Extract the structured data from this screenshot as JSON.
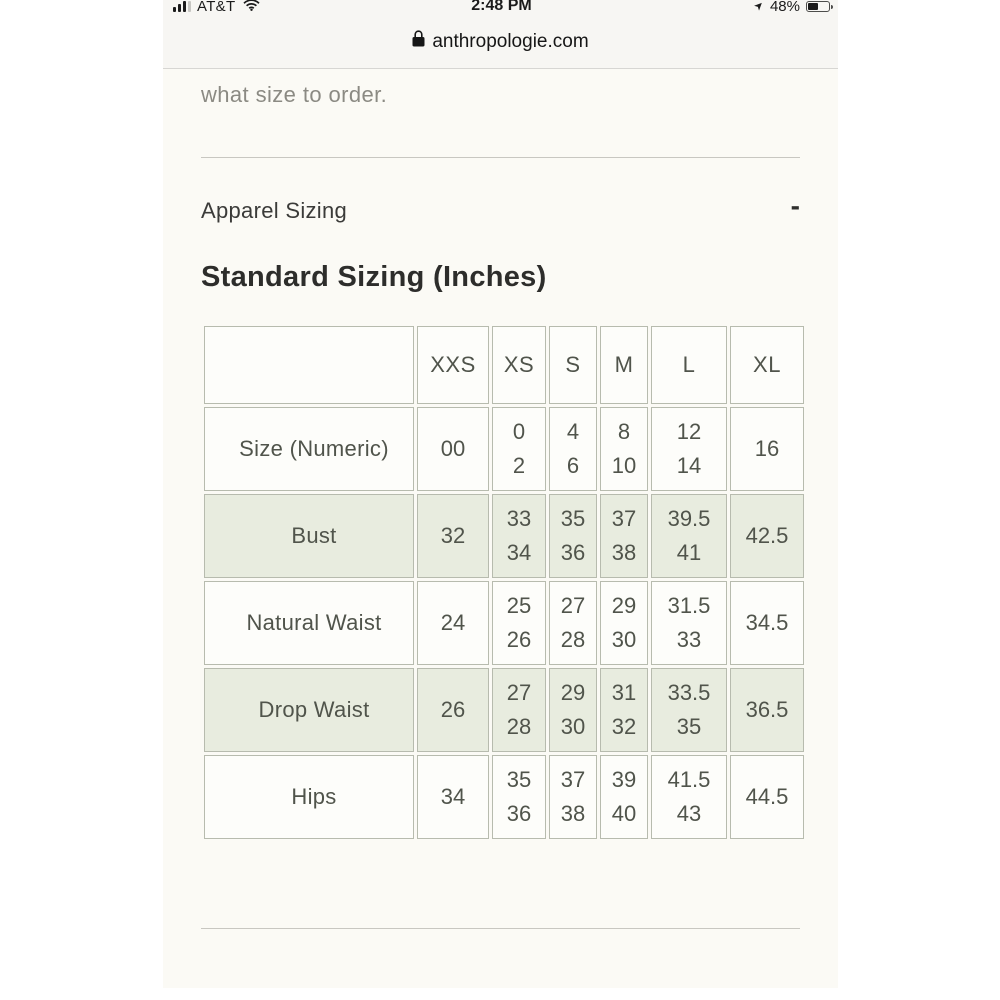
{
  "status_bar": {
    "carrier": "AT&T",
    "time": "2:48 PM",
    "battery_percent": "48%",
    "icons": {
      "signal": "cellular-signal-bars",
      "wifi": "wifi",
      "location": "location-arrow",
      "battery": "battery-half-full"
    },
    "location_glyph": "➤"
  },
  "url_bar": {
    "lock_icon": "padlock",
    "domain": "anthropologie.com"
  },
  "page": {
    "intro_text": "what size to order.",
    "accordion_title": "Apparel Sizing",
    "accordion_collapse_symbol": "-",
    "table_heading": "Standard Sizing (Inches)"
  },
  "sizing_table": {
    "columns": [
      "XXS",
      "XS",
      "S",
      "M",
      "L",
      "XL"
    ],
    "rows": [
      {
        "label": "Size (Numeric)",
        "cells": [
          [
            "00"
          ],
          [
            "0",
            "2"
          ],
          [
            "4",
            "6"
          ],
          [
            "8",
            "10"
          ],
          [
            "12",
            "14"
          ],
          [
            "16"
          ]
        ]
      },
      {
        "label": "Bust",
        "cells": [
          [
            "32"
          ],
          [
            "33",
            "34"
          ],
          [
            "35",
            "36"
          ],
          [
            "37",
            "38"
          ],
          [
            "39.5",
            "41"
          ],
          [
            "42.5"
          ]
        ]
      },
      {
        "label": "Natural Waist",
        "cells": [
          [
            "24"
          ],
          [
            "25",
            "26"
          ],
          [
            "27",
            "28"
          ],
          [
            "29",
            "30"
          ],
          [
            "31.5",
            "33"
          ],
          [
            "34.5"
          ]
        ]
      },
      {
        "label": "Drop Waist",
        "cells": [
          [
            "26"
          ],
          [
            "27",
            "28"
          ],
          [
            "29",
            "30"
          ],
          [
            "31",
            "32"
          ],
          [
            "33.5",
            "35"
          ],
          [
            "36.5"
          ]
        ]
      },
      {
        "label": "Hips",
        "cells": [
          [
            "34"
          ],
          [
            "35",
            "36"
          ],
          [
            "37",
            "38"
          ],
          [
            "39",
            "40"
          ],
          [
            "41.5",
            "43"
          ],
          [
            "44.5"
          ]
        ]
      }
    ]
  },
  "colors": {
    "page_background": "#fbfaf5",
    "chrome_background": "#f7f6f3",
    "stripe_green": "#e8ecdf",
    "table_border": "#b7bbae",
    "table_text": "#50544b",
    "muted_text": "#8b8a83"
  }
}
